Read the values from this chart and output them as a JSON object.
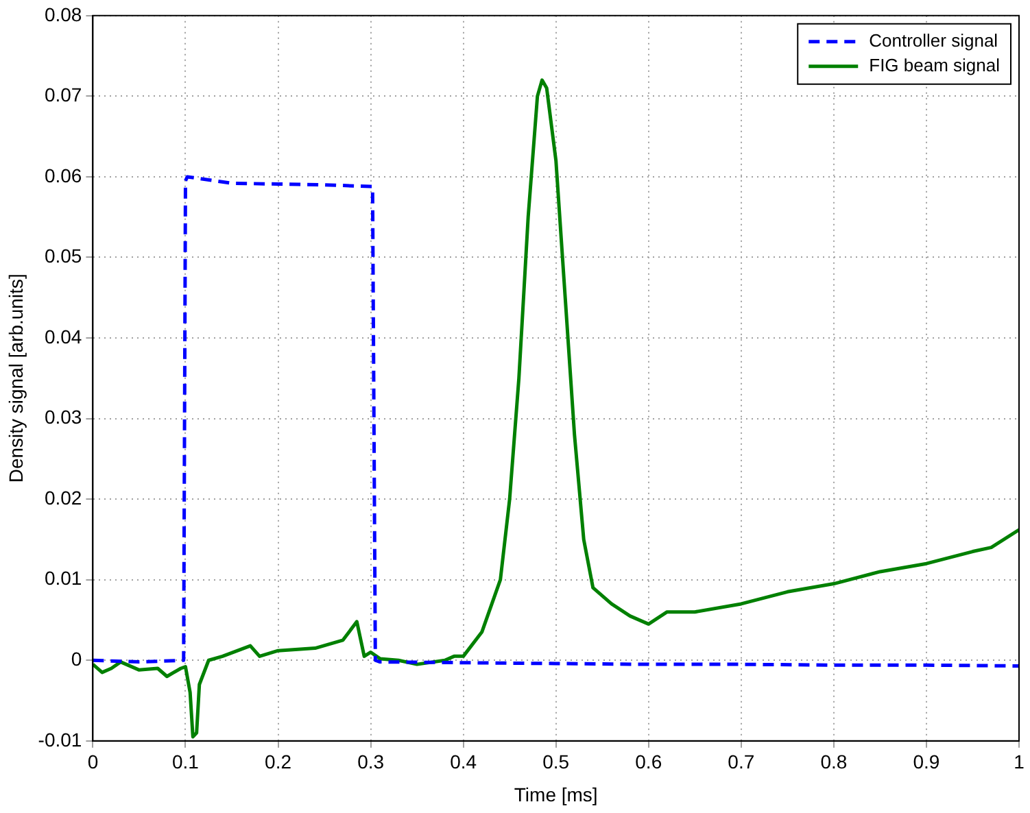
{
  "chart_data": {
    "type": "line",
    "xlabel": "Time [ms]",
    "ylabel": "Density signal [arb.units]",
    "xlim": [
      0,
      1
    ],
    "xticks": [
      0,
      0.1,
      0.2,
      0.3,
      0.4,
      0.5,
      0.6,
      0.7,
      0.8,
      0.9,
      1
    ],
    "ylim": [
      -0.01,
      0.08
    ],
    "yticks": [
      -0.01,
      0,
      0.01,
      0.02,
      0.03,
      0.04,
      0.05,
      0.06,
      0.07,
      0.08
    ],
    "grid": true,
    "legend": "top right",
    "marker": "none",
    "series": [
      {
        "name": "Controller signal",
        "color": "#0000ff",
        "line_style": "dashed",
        "x": [
          0,
          0.05,
          0.098,
          0.1,
          0.102,
          0.15,
          0.2,
          0.25,
          0.3,
          0.302,
          0.305,
          0.31,
          0.4,
          0.5,
          0.6,
          0.7,
          0.8,
          0.9,
          1
        ],
        "values": [
          0,
          -0.0002,
          0,
          0.0595,
          0.06,
          0.0592,
          0.0591,
          0.059,
          0.0588,
          0.0588,
          0,
          -0.0002,
          -0.0003,
          -0.0004,
          -0.0005,
          -0.0005,
          -0.0006,
          -0.0006,
          -0.0007
        ]
      },
      {
        "name": "FIG beam signal",
        "color": "#008000",
        "line_style": "solid",
        "x": [
          0,
          0.01,
          0.02,
          0.03,
          0.05,
          0.07,
          0.08,
          0.095,
          0.1,
          0.105,
          0.108,
          0.112,
          0.115,
          0.125,
          0.14,
          0.17,
          0.18,
          0.2,
          0.24,
          0.27,
          0.285,
          0.293,
          0.3,
          0.31,
          0.33,
          0.35,
          0.38,
          0.39,
          0.4,
          0.42,
          0.44,
          0.45,
          0.46,
          0.47,
          0.48,
          0.485,
          0.49,
          0.5,
          0.51,
          0.52,
          0.53,
          0.54,
          0.56,
          0.58,
          0.6,
          0.62,
          0.65,
          0.7,
          0.75,
          0.8,
          0.85,
          0.9,
          0.95,
          0.97,
          1
        ],
        "values": [
          -0.0005,
          -0.0015,
          -0.001,
          -0.0002,
          -0.0012,
          -0.001,
          -0.002,
          -0.001,
          -0.0008,
          -0.004,
          -0.0095,
          -0.009,
          -0.003,
          0,
          0.0005,
          0.0018,
          0.0005,
          0.0012,
          0.0015,
          0.0025,
          0.0048,
          0.0005,
          0.001,
          0.0002,
          0,
          -0.0005,
          0,
          0.0005,
          0.0005,
          0.0035,
          0.01,
          0.02,
          0.035,
          0.055,
          0.07,
          0.072,
          0.071,
          0.062,
          0.045,
          0.028,
          0.015,
          0.009,
          0.007,
          0.0055,
          0.0045,
          0.006,
          0.006,
          0.007,
          0.0085,
          0.0095,
          0.011,
          0.012,
          0.0135,
          0.014,
          0.0162
        ]
      }
    ]
  }
}
